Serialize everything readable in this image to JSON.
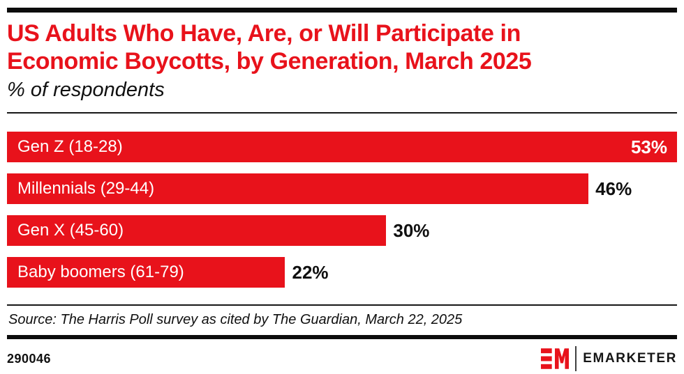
{
  "header": {
    "title_line1": "US Adults Who Have, Are, or Will Participate in",
    "title_line2": "Economic Boycotts, by Generation, March 2025",
    "subtitle": "% of respondents"
  },
  "chart_data": {
    "type": "bar",
    "orientation": "horizontal",
    "title": "US Adults Who Have, Are, or Will Participate in Economic Boycotts, by Generation, March 2025",
    "subtitle": "% of respondents",
    "categories": [
      "Gen Z (18-28)",
      "Millennials (29-44)",
      "Gen X (45-60)",
      "Baby boomers (61-79)"
    ],
    "values": [
      53,
      46,
      30,
      22
    ],
    "value_labels": [
      "53%",
      "46%",
      "30%",
      "22%"
    ],
    "value_label_inside": [
      true,
      false,
      false,
      false
    ],
    "xlim": [
      0,
      53
    ],
    "grid": false,
    "legend": false
  },
  "footer": {
    "source": "Source: The Harris Poll survey as cited by The Guardian, March 22, 2025",
    "chart_id": "290046",
    "brand_name": "EMARKETER"
  },
  "colors": {
    "accent_red": "#E8121B",
    "text_black": "#101010",
    "bar_label_white": "#FFFFFF"
  }
}
